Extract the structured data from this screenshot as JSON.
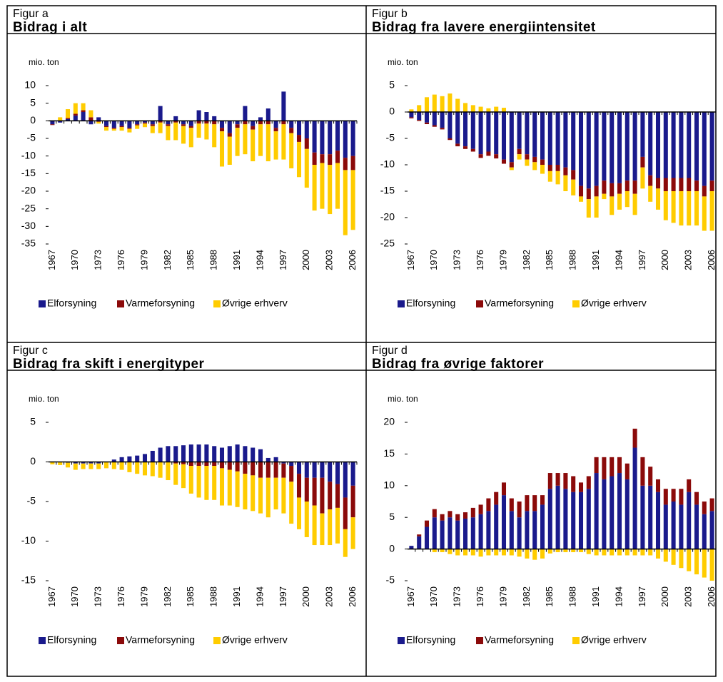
{
  "chart_data": [
    {
      "type": "bar",
      "figure": "Figur a",
      "title": "Bidrag i alt",
      "ylabel": "mio. ton",
      "categories": [
        "1967",
        null,
        null,
        "1970",
        null,
        null,
        "1973",
        null,
        null,
        "1976",
        null,
        null,
        "1979",
        null,
        null,
        "1982",
        null,
        null,
        "1985",
        null,
        null,
        "1988",
        null,
        null,
        "1991",
        null,
        null,
        "1994",
        null,
        null,
        "1997",
        null,
        null,
        "2000",
        null,
        null,
        "2003",
        null,
        null,
        "2006"
      ],
      "series": [
        {
          "name": "Elforsyning",
          "color": "#1a1a8c",
          "values": [
            -1,
            -0.5,
            0.5,
            1.5,
            2.5,
            -1,
            1,
            -1.5,
            -2,
            -1.5,
            -2,
            -1,
            -0.5,
            -1,
            4.2,
            -1,
            1.3,
            -1,
            -1.5,
            3,
            2.5,
            1.3,
            -2,
            -3.5,
            -1,
            4.2,
            -1.5,
            1,
            3.5,
            -2,
            8.3,
            -2,
            -4,
            -5,
            -9,
            -9.5,
            -9.5,
            -8.5,
            -10.5,
            -10
          ]
        },
        {
          "name": "Varmeforsyning",
          "color": "#8b0a0a",
          "values": [
            -0.2,
            0,
            0.3,
            0.5,
            0.5,
            1,
            -0.3,
            -0.3,
            -0.3,
            -0.3,
            -0.3,
            -0.3,
            -0.3,
            -0.5,
            -0.5,
            -0.5,
            -0.5,
            -0.5,
            -0.5,
            -0.8,
            -0.8,
            -1,
            -1,
            -1,
            -1,
            -1,
            -1,
            -1,
            -1,
            -1,
            -1,
            -1.5,
            -2,
            -3,
            -3.5,
            -2.5,
            -3,
            -3.5,
            -3.5,
            -4
          ]
        },
        {
          "name": "Øvrige erhverv",
          "color": "#ffcc00",
          "values": [
            0,
            1,
            2.5,
            3,
            2,
            2,
            -0.5,
            -1,
            -0.5,
            -1,
            -1,
            -1,
            -1,
            -2,
            -3,
            -4,
            -5,
            -5,
            -5.5,
            -4,
            -4.5,
            -6.5,
            -10,
            -8,
            -8,
            -8.5,
            -9,
            -9,
            -10.5,
            -8,
            -10,
            -10,
            -10,
            -11,
            -13,
            -13,
            -14,
            -13,
            -18.5,
            -17
          ]
        }
      ],
      "ylim": [
        -35,
        10
      ],
      "yticks": [
        10,
        5,
        0,
        -5,
        -10,
        -15,
        -20,
        -25,
        -30,
        -35
      ]
    },
    {
      "type": "bar",
      "figure": "Figur b",
      "title": "Bidrag fra lavere energiintensitet",
      "ylabel": "mio. ton",
      "categories": [
        "1967",
        null,
        null,
        "1970",
        null,
        null,
        "1973",
        null,
        null,
        "1976",
        null,
        null,
        "1979",
        null,
        null,
        "1982",
        null,
        null,
        "1985",
        null,
        null,
        "1988",
        null,
        null,
        "1991",
        null,
        null,
        "1994",
        null,
        null,
        "1997",
        null,
        null,
        "2000",
        null,
        null,
        "2003",
        null,
        null,
        "2006"
      ],
      "series": [
        {
          "name": "Elforsyning",
          "color": "#1a1a8c",
          "values": [
            -1,
            -1.5,
            -2,
            -2.5,
            -3,
            -5,
            -6,
            -6.5,
            -7,
            -8,
            -7.5,
            -8,
            -9,
            -9.5,
            -7,
            -8,
            -8.5,
            -9,
            -10,
            -10,
            -10.5,
            -11,
            -14,
            -14.5,
            -14,
            -13,
            -13.5,
            -13.5,
            -13,
            -13,
            -8.5,
            -12,
            -12.5,
            -12.5,
            -12.5,
            -12.5,
            -12.5,
            -13,
            -14,
            -13
          ]
        },
        {
          "name": "Varmeforsyning",
          "color": "#8b0a0a",
          "values": [
            -0.2,
            -0.2,
            -0.3,
            -0.3,
            -0.3,
            -0.3,
            -0.5,
            -0.5,
            -0.5,
            -0.7,
            -0.8,
            -0.8,
            -0.8,
            -1,
            -1,
            -1,
            -1,
            -1,
            -1.2,
            -1.2,
            -1.5,
            -1.8,
            -2,
            -2,
            -2,
            -2.5,
            -2.5,
            -2,
            -2,
            -2.5,
            -2,
            -2,
            -2,
            -2.5,
            -2.5,
            -2.5,
            -2.5,
            -2,
            -2,
            -2
          ]
        },
        {
          "name": "Øvrige erhverv",
          "color": "#ffcc00",
          "values": [
            0.5,
            1.3,
            2.8,
            3.3,
            3,
            3.5,
            2.5,
            1.7,
            1.3,
            1,
            0.7,
            1,
            0.8,
            -0.5,
            -1,
            -1.2,
            -1.5,
            -1.7,
            -2,
            -2.5,
            -3,
            -3,
            -1,
            -3.5,
            -4,
            -1,
            -3.5,
            -3,
            -3,
            -4,
            -4,
            -3,
            -4,
            -5.5,
            -6,
            -6.5,
            -6.5,
            -6.5,
            -6.5,
            -7.5
          ]
        }
      ],
      "ylim": [
        -25,
        5
      ],
      "yticks": [
        5,
        0,
        -5,
        -10,
        -15,
        -20,
        -25
      ]
    },
    {
      "type": "bar",
      "figure": "Figur c",
      "title": "Bidrag fra skift i energityper",
      "ylabel": "mio. ton",
      "categories": [
        "1967",
        null,
        null,
        "1970",
        null,
        null,
        "1973",
        null,
        null,
        "1976",
        null,
        null,
        "1979",
        null,
        null,
        "1982",
        null,
        null,
        "1985",
        null,
        null,
        "1988",
        null,
        null,
        "1991",
        null,
        null,
        "1994",
        null,
        null,
        "1997",
        null,
        null,
        "2000",
        null,
        null,
        "2003",
        null,
        null,
        "2006"
      ],
      "series": [
        {
          "name": "Elforsyning",
          "color": "#1a1a8c",
          "values": [
            0,
            0,
            -0.1,
            -0.2,
            -0.2,
            -0.2,
            -0.2,
            0,
            0.3,
            0.6,
            0.7,
            0.8,
            1,
            1.4,
            1.8,
            2,
            2,
            2.1,
            2.2,
            2.2,
            2.2,
            2,
            1.8,
            2,
            2.2,
            2,
            1.8,
            1.6,
            0.5,
            0.6,
            -0.2,
            -0.5,
            -1.5,
            -2,
            -2,
            -2,
            -2.5,
            -2.8,
            -4.5,
            -3
          ]
        },
        {
          "name": "Varmeforsyning",
          "color": "#8b0a0a",
          "values": [
            0,
            0,
            0,
            0,
            0,
            0,
            0,
            0,
            0,
            0,
            0,
            0,
            0,
            0,
            0,
            0,
            -0.2,
            -0.3,
            -0.5,
            -0.5,
            -0.5,
            -0.5,
            -0.8,
            -1,
            -1.2,
            -1.5,
            -1.7,
            -2,
            -2,
            -2,
            -1.8,
            -2,
            -3,
            -3,
            -3.5,
            -4.5,
            -3.5,
            -3,
            -4,
            -4
          ]
        },
        {
          "name": "Øvrige erhverv",
          "color": "#ffcc00",
          "values": [
            -0.3,
            -0.4,
            -0.6,
            -0.8,
            -0.7,
            -0.7,
            -0.7,
            -0.8,
            -0.9,
            -1,
            -1.3,
            -1.5,
            -1.7,
            -1.8,
            -2,
            -2.3,
            -2.7,
            -3,
            -3.5,
            -4,
            -4.3,
            -4.3,
            -4.7,
            -4.5,
            -4.5,
            -4.5,
            -4.5,
            -4.5,
            -5,
            -4,
            -4.5,
            -5.3,
            -4,
            -4.5,
            -5,
            -4,
            -4.5,
            -4.5,
            -3.5,
            -4
          ]
        }
      ],
      "ylim": [
        -15,
        5
      ],
      "yticks": [
        5,
        0,
        -5,
        -10,
        -15
      ]
    },
    {
      "type": "bar",
      "figure": "Figur d",
      "title": "Bidrag fra øvrige faktorer",
      "ylabel": "mio. ton",
      "categories": [
        "1967",
        null,
        null,
        "1970",
        null,
        null,
        "1973",
        null,
        null,
        "1976",
        null,
        null,
        "1979",
        null,
        null,
        "1982",
        null,
        null,
        "1985",
        null,
        null,
        "1988",
        null,
        null,
        "1991",
        null,
        null,
        "1994",
        null,
        null,
        "1997",
        null,
        null,
        "2000",
        null,
        null,
        "2003",
        null,
        null,
        "2006"
      ],
      "series": [
        {
          "name": "Elforsyning",
          "color": "#1a1a8c",
          "values": [
            0.5,
            2,
            3.5,
            5,
            4.5,
            5,
            4.5,
            4.8,
            5,
            5.5,
            6,
            7,
            8.5,
            6,
            5,
            6,
            6,
            7,
            9.5,
            10,
            9.5,
            9,
            9,
            9.5,
            12,
            11,
            11.5,
            12,
            11,
            16,
            10,
            10,
            9,
            7,
            7.5,
            7,
            9,
            7,
            5.5,
            6
          ]
        },
        {
          "name": "Varmeforsyning",
          "color": "#8b0a0a",
          "values": [
            0,
            0.3,
            1,
            1.3,
            1,
            1,
            1,
            1,
            1.5,
            1.5,
            2,
            2,
            2,
            2,
            2.5,
            2.5,
            2.5,
            1.5,
            2.5,
            2,
            2.5,
            2.5,
            1.5,
            2,
            2.5,
            3.5,
            3,
            2.5,
            2.5,
            3,
            4.5,
            3,
            2,
            2.5,
            2,
            2.5,
            2,
            2,
            2,
            2
          ]
        },
        {
          "name": "Øvrige erhverv",
          "color": "#ffcc00",
          "values": [
            0,
            0,
            0,
            -0.5,
            -0.5,
            -0.8,
            -1,
            -1,
            -1,
            -1.2,
            -1,
            -1,
            -1,
            -1,
            -1.2,
            -1.5,
            -1.7,
            -1.5,
            -0.7,
            -0.5,
            -0.5,
            -0.5,
            -0.5,
            -0.8,
            -1,
            -1,
            -1,
            -1,
            -1,
            -1,
            -1,
            -1,
            -1.5,
            -2,
            -2.5,
            -3,
            -3.5,
            -4,
            -4.5,
            -5
          ]
        }
      ],
      "ylim": [
        -5,
        20
      ],
      "yticks": [
        20,
        15,
        10,
        5,
        0,
        -5
      ]
    }
  ]
}
